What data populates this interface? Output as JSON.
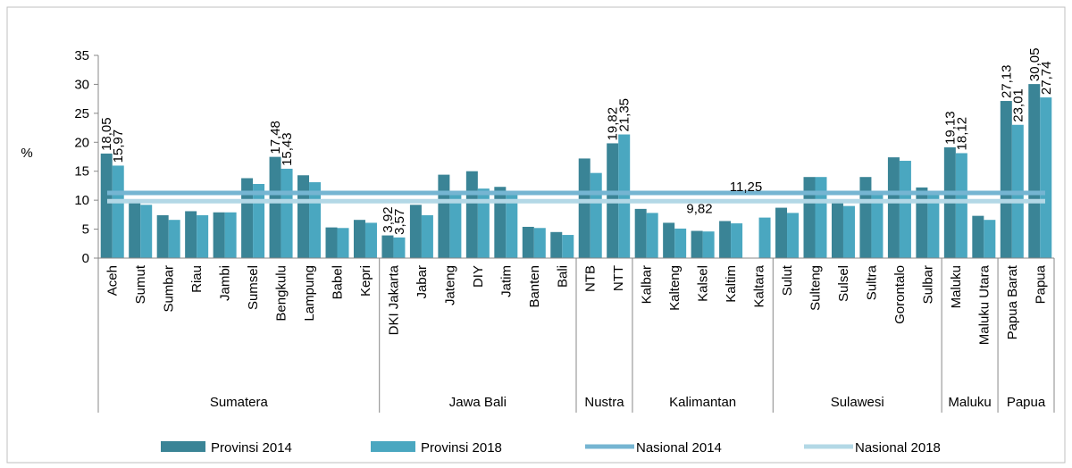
{
  "chart_data": {
    "type": "bar",
    "y_label": "%",
    "categories": [
      "Aceh",
      "Sumut",
      "Sumbar",
      "Riau",
      "Jambi",
      "Sumsel",
      "Bengkulu",
      "Lampung",
      "Babel",
      "Kepri",
      "DKI Jakarta",
      "Jabar",
      "Jateng",
      "DIY",
      "Jatim",
      "Banten",
      "Bali",
      "NTB",
      "NTT",
      "Kalbar",
      "Kalteng",
      "Kalsel",
      "Kaltim",
      "Kaltara",
      "Sulut",
      "Sulteng",
      "Sulsel",
      "Sultra",
      "Gorontalo",
      "Sulbar",
      "Maluku",
      "Maluku Utara",
      "Papua Barat",
      "Papua"
    ],
    "groups": [
      {
        "name": "Sumatera",
        "span": 10
      },
      {
        "name": "Jawa Bali",
        "span": 7
      },
      {
        "name": "Nustra",
        "span": 2
      },
      {
        "name": "Kalimantan",
        "span": 5
      },
      {
        "name": "Sulawesi",
        "span": 6
      },
      {
        "name": "Maluku",
        "span": 2
      },
      {
        "name": "Papua",
        "span": 2
      }
    ],
    "series": [
      {
        "name": "Provinsi 2014",
        "color": "#3a8496",
        "values": [
          18.05,
          9.5,
          7.4,
          8.1,
          7.9,
          13.8,
          17.48,
          14.3,
          5.3,
          6.6,
          3.92,
          9.2,
          14.4,
          15.0,
          12.3,
          5.4,
          4.5,
          17.2,
          19.82,
          8.5,
          6.1,
          4.7,
          6.4,
          null,
          8.7,
          14.0,
          9.5,
          14.0,
          17.4,
          12.2,
          19.13,
          7.3,
          27.13,
          30.05
        ],
        "value_labels": [
          "18,05",
          null,
          null,
          null,
          null,
          null,
          "17,48",
          null,
          null,
          null,
          "3,92",
          null,
          null,
          null,
          null,
          null,
          null,
          null,
          "19,82",
          null,
          null,
          null,
          null,
          null,
          null,
          null,
          null,
          null,
          null,
          null,
          "19,13",
          null,
          "27,13",
          "30,05"
        ]
      },
      {
        "name": "Provinsi 2018",
        "color": "#4aa7c0",
        "values": [
          15.97,
          9.2,
          6.6,
          7.4,
          7.9,
          12.8,
          15.43,
          13.1,
          5.2,
          6.1,
          3.57,
          7.4,
          11.3,
          12.0,
          11.0,
          5.2,
          4.0,
          14.7,
          21.35,
          7.8,
          5.1,
          4.6,
          6.0,
          7.0,
          7.8,
          14.0,
          9.0,
          11.6,
          16.8,
          11.3,
          18.12,
          6.6,
          23.01,
          27.74
        ],
        "value_labels": [
          "15,97",
          null,
          null,
          null,
          null,
          null,
          "15,43",
          null,
          null,
          null,
          "3,57",
          null,
          null,
          null,
          null,
          null,
          null,
          null,
          "21,35",
          null,
          null,
          null,
          null,
          null,
          null,
          null,
          null,
          null,
          null,
          null,
          "18,12",
          null,
          "23,01",
          "27,74"
        ]
      }
    ],
    "lines": [
      {
        "name": "Nasional 2014",
        "color": "#75b5d2",
        "value": 11.25,
        "value_label": "11,25"
      },
      {
        "name": "Nasional 2018",
        "color": "#b3d8e6",
        "value": 9.82,
        "value_label": "9,82"
      }
    ],
    "ylim": [
      0,
      35
    ],
    "yticks": [
      0,
      5,
      10,
      15,
      20,
      25,
      30,
      35
    ]
  }
}
